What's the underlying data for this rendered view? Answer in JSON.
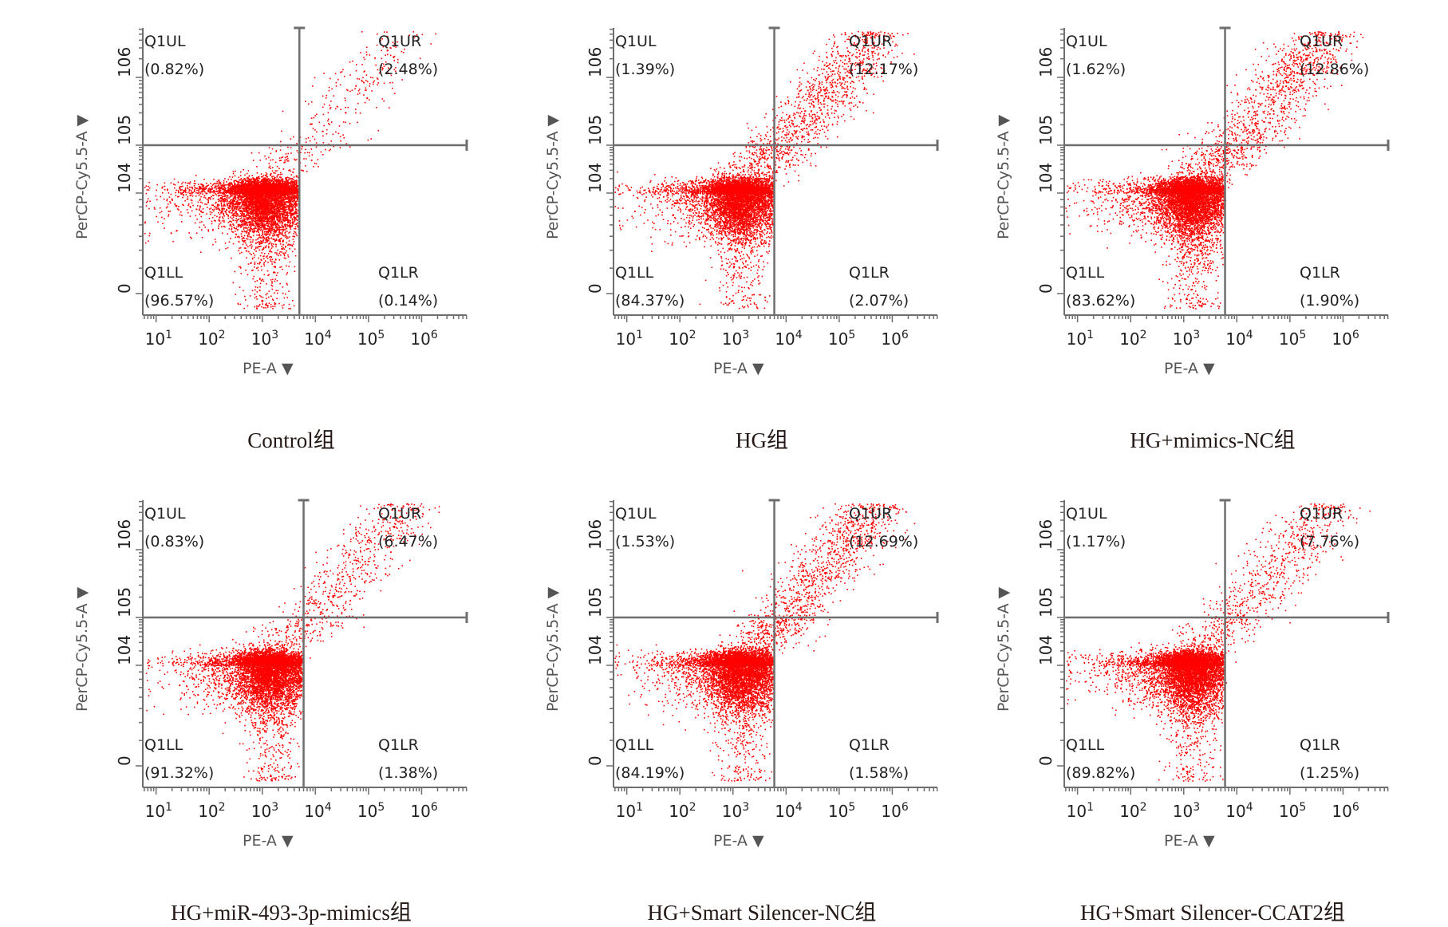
{
  "chart_data": [
    {
      "type": "scatter",
      "title": "Control组",
      "xlabel": "PE-A",
      "ylabel": "PerCP-Cy5.5-A",
      "x_ticks": [
        "10^1",
        "10^2",
        "10^3",
        "10^4",
        "10^5",
        "10^6"
      ],
      "y_ticks": [
        "0",
        "10^4",
        "10^5",
        "10^6"
      ],
      "quadrants": {
        "Q1UL": "0.82%",
        "Q1UR": "2.48%",
        "Q1LL": "96.57%",
        "Q1LR": "0.14%"
      },
      "gate": {
        "x": 5000,
        "y": 100000
      },
      "cluster_center": {
        "x": 1200,
        "y": 10000
      }
    },
    {
      "type": "scatter",
      "title": "HG组",
      "xlabel": "PE-A",
      "ylabel": "PerCP-Cy5.5-A",
      "x_ticks": [
        "10^1",
        "10^2",
        "10^3",
        "10^4",
        "10^5",
        "10^6"
      ],
      "y_ticks": [
        "0",
        "10^4",
        "10^5",
        "10^6"
      ],
      "quadrants": {
        "Q1UL": "1.39%",
        "Q1UR": "12.17%",
        "Q1LL": "84.37%",
        "Q1LR": "2.07%"
      },
      "gate": {
        "x": 6000,
        "y": 100000
      },
      "cluster_center": {
        "x": 1500,
        "y": 10000
      }
    },
    {
      "type": "scatter",
      "title": "HG+mimics-NC组",
      "xlabel": "PE-A",
      "ylabel": "PerCP-Cy5.5-A",
      "x_ticks": [
        "10^1",
        "10^2",
        "10^3",
        "10^4",
        "10^5",
        "10^6"
      ],
      "y_ticks": [
        "0",
        "10^4",
        "10^5",
        "10^6"
      ],
      "quadrants": {
        "Q1UL": "1.62%",
        "Q1UR": "12.86%",
        "Q1LL": "83.62%",
        "Q1LR": "1.90%"
      },
      "gate": {
        "x": 6000,
        "y": 100000
      },
      "cluster_center": {
        "x": 1500,
        "y": 10000
      }
    },
    {
      "type": "scatter",
      "title": "HG+miR-493-3p-mimics组",
      "xlabel": "PE-A",
      "ylabel": "PerCP-Cy5.5-A",
      "x_ticks": [
        "10^1",
        "10^2",
        "10^3",
        "10^4",
        "10^5",
        "10^6"
      ],
      "y_ticks": [
        "0",
        "10^4",
        "10^5",
        "10^6"
      ],
      "quadrants": {
        "Q1UL": "0.83%",
        "Q1UR": "6.47%",
        "Q1LL": "91.32%",
        "Q1LR": "1.38%"
      },
      "gate": {
        "x": 6000,
        "y": 100000
      },
      "cluster_center": {
        "x": 1500,
        "y": 10000
      }
    },
    {
      "type": "scatter",
      "title": "HG+Smart Silencer-NC组",
      "xlabel": "PE-A",
      "ylabel": "PerCP-Cy5.5-A",
      "x_ticks": [
        "10^1",
        "10^2",
        "10^3",
        "10^4",
        "10^5",
        "10^6"
      ],
      "y_ticks": [
        "0",
        "10^4",
        "10^5",
        "10^6"
      ],
      "quadrants": {
        "Q1UL": "1.53%",
        "Q1UR": "12.69%",
        "Q1LL": "84.19%",
        "Q1LR": "1.58%"
      },
      "gate": {
        "x": 6000,
        "y": 100000
      },
      "cluster_center": {
        "x": 1500,
        "y": 10000
      }
    },
    {
      "type": "scatter",
      "title": "HG+Smart Silencer-CCAT2组",
      "xlabel": "PE-A",
      "ylabel": "PerCP-Cy5.5-A",
      "x_ticks": [
        "10^1",
        "10^2",
        "10^3",
        "10^4",
        "10^5",
        "10^6"
      ],
      "y_ticks": [
        "0",
        "10^4",
        "10^5",
        "10^6"
      ],
      "quadrants": {
        "Q1UL": "1.17%",
        "Q1UR": "7.76%",
        "Q1LL": "89.82%",
        "Q1LR": "1.25%"
      },
      "gate": {
        "x": 6000,
        "y": 100000
      },
      "cluster_center": {
        "x": 1500,
        "y": 10000
      }
    }
  ],
  "style": {
    "dot_color": "#ff0000",
    "axis_color": "#6e6e6e",
    "text_color": "#222222"
  },
  "quadrant_names": [
    "Q1UL",
    "Q1UR",
    "Q1LL",
    "Q1LR"
  ]
}
